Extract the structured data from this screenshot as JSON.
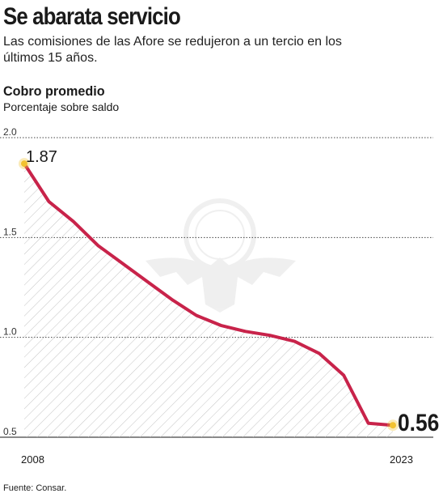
{
  "header": {
    "title": "Se abarata servicio",
    "subtitle": "Las comisiones de las Afore se redujeron a un tercio en los últimos 15 años."
  },
  "footer": {
    "source": "Fuente: Consar."
  },
  "colors": {
    "line": "#c8234a",
    "marker": "#f2c230",
    "grid": "#444444",
    "hatch": "#bdbdbd"
  },
  "chart_data": {
    "type": "area",
    "title": "Cobro promedio",
    "subtitle": "Porcentaje sobre saldo",
    "xlabel": "",
    "ylabel": "",
    "x": [
      2008,
      2009,
      2010,
      2011,
      2012,
      2013,
      2014,
      2015,
      2016,
      2017,
      2018,
      2019,
      2020,
      2021,
      2022,
      2023
    ],
    "values": [
      1.87,
      1.68,
      1.58,
      1.46,
      1.37,
      1.28,
      1.19,
      1.11,
      1.06,
      1.03,
      1.01,
      0.98,
      0.92,
      0.81,
      0.57,
      0.56
    ],
    "ylim": [
      0.5,
      2.0
    ],
    "yticks": [
      0.5,
      1.0,
      1.5,
      2.0
    ],
    "ytick_labels": [
      "0.5",
      "1.0",
      "1.5",
      "2.0"
    ],
    "xtick_labels": [
      "2008",
      "2023"
    ],
    "start_label": "1.87",
    "end_label": "0.56",
    "grid": "horizontal",
    "legend": "none"
  }
}
